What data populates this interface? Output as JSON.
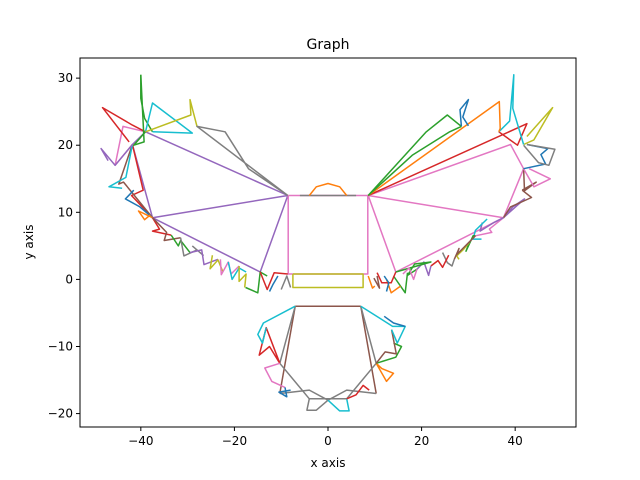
{
  "chart_data": {
    "type": "line",
    "title": "Graph",
    "xlabel": "x axis",
    "ylabel": "y axis",
    "xlim": [
      -53,
      53
    ],
    "ylim": [
      -22,
      33
    ],
    "xticks": [
      -40,
      -20,
      0,
      20,
      40
    ],
    "yticks": [
      -20,
      -10,
      0,
      10,
      20,
      30
    ],
    "grid": false,
    "legend": "none",
    "palette": [
      "#1f77b4",
      "#ff7f0e",
      "#2ca02c",
      "#d62728",
      "#9467bd",
      "#8c564b",
      "#e377c2",
      "#7f7f7f",
      "#bcbd22",
      "#17becf"
    ],
    "series": [
      {
        "color": "#9467bd",
        "x": [
          -8.6,
          -37.5,
          -14.5,
          -8.6
        ],
        "y": [
          12.5,
          9.2,
          1.1,
          12.5
        ]
      },
      {
        "color": "#9467bd",
        "x": [
          -8.6,
          -39,
          -41.8,
          -37.5
        ],
        "y": [
          12.5,
          22,
          20.1,
          9.2
        ]
      },
      {
        "color": "#e377c2",
        "x": [
          8.6,
          37.5,
          14.5,
          8.6
        ],
        "y": [
          12.5,
          9.2,
          1.1,
          12.5
        ]
      },
      {
        "color": "#e377c2",
        "x": [
          8.6,
          39,
          41.8,
          37.5
        ],
        "y": [
          12.5,
          20.1,
          16.5,
          9.2
        ]
      },
      {
        "color": "#e377c2",
        "x": [
          -8.5,
          8.5,
          8.5,
          -8.5,
          -8.5
        ],
        "y": [
          12.5,
          12.5,
          0.8,
          0.8,
          12.5
        ]
      },
      {
        "color": "#7f7f7f",
        "x": [
          -6,
          6
        ],
        "y": [
          12.5,
          12.5
        ]
      },
      {
        "color": "#bcbd22",
        "x": [
          -7.5,
          7.5,
          7.5,
          -7.5,
          -7.5
        ],
        "y": [
          0.8,
          0.8,
          -1.2,
          -1.2,
          0.8
        ]
      },
      {
        "color": "#ff7f0e",
        "x": [
          -4,
          -2.5,
          0,
          2.5,
          4
        ],
        "y": [
          12.5,
          13.8,
          14.3,
          13.8,
          12.5
        ]
      },
      {
        "color": "#8c564b",
        "x": [
          -7,
          7
        ],
        "y": [
          -4,
          -4
        ]
      },
      {
        "color": "#8c564b",
        "x": [
          -7,
          -10.3
        ],
        "y": [
          -4,
          -17
        ]
      },
      {
        "color": "#8c564b",
        "x": [
          7,
          10.3
        ],
        "y": [
          -4,
          -17
        ]
      },
      {
        "color": "#7f7f7f",
        "x": [
          -7,
          -10.3,
          -4,
          4,
          10.3,
          7
        ],
        "y": [
          -4,
          -12.5,
          -17.8,
          -17.8,
          -12.5,
          -4
        ]
      },
      {
        "color": "#7f7f7f",
        "x": [
          -10.3,
          -4,
          0,
          4,
          10.3
        ],
        "y": [
          -17,
          -16.5,
          -18,
          -16.5,
          -17
        ]
      },
      {
        "color": "#d62728",
        "x": [
          -10.3,
          -12.5,
          -14.7,
          -13.2,
          -10.3
        ],
        "y": [
          -12.5,
          -10,
          -11.3,
          -7.2,
          -12.5
        ]
      },
      {
        "color": "#17becf",
        "x": [
          -7,
          -13.8,
          -15,
          -14,
          -13.2
        ],
        "y": [
          -4,
          -6.5,
          -8.2,
          -9.5,
          -7.2
        ]
      },
      {
        "color": "#e377c2",
        "x": [
          -10.3,
          -13.5,
          -12,
          -9.2
        ],
        "y": [
          -12.5,
          -13.2,
          -15.2,
          -16.1
        ]
      },
      {
        "color": "#1f77b4",
        "x": [
          -9.2,
          -8.8,
          -10.5,
          -8
        ],
        "y": [
          -16.1,
          -17.5,
          -16.8,
          -16.5
        ]
      },
      {
        "color": "#7f7f7f",
        "x": [
          -4,
          -4.5,
          -2.5,
          0
        ],
        "y": [
          -17.8,
          -19.5,
          -19.5,
          -18
        ]
      },
      {
        "color": "#17becf",
        "x": [
          0,
          2.5,
          4.5,
          4
        ],
        "y": [
          -18,
          -19.6,
          -19.6,
          -17.8
        ]
      },
      {
        "color": "#d62728",
        "x": [
          4,
          6,
          7.5,
          8.8
        ],
        "y": [
          -17.8,
          -17.2,
          -15.8,
          -16.5
        ]
      },
      {
        "color": "#ff7f0e",
        "x": [
          10.3,
          12.5,
          14,
          11.5,
          10.3
        ],
        "y": [
          -12.5,
          -15.2,
          -14,
          -13.3,
          -12.5
        ]
      },
      {
        "color": "#2ca02c",
        "x": [
          10.3,
          14.5,
          15.7,
          14
        ],
        "y": [
          -12.5,
          -11.6,
          -10,
          -9.5
        ]
      },
      {
        "color": "#8c564b",
        "x": [
          10.3,
          12.2,
          14.6,
          13.6
        ],
        "y": [
          -12.5,
          -10.8,
          -11.1,
          -7.5
        ]
      },
      {
        "color": "#17becf",
        "x": [
          7,
          13.8,
          16.5,
          14.8,
          13.6
        ],
        "y": [
          -4,
          -7,
          -7,
          -9.5,
          -7.5
        ]
      },
      {
        "color": "#1f77b4",
        "x": [
          12,
          14,
          16.5
        ],
        "y": [
          -5.5,
          -6.5,
          -7
        ]
      },
      {
        "color": "#d62728",
        "x": [
          -37.5,
          -42,
          -39.5,
          -41.8
        ],
        "y": [
          9.2,
          12.5,
          13.3,
          20.1
        ]
      },
      {
        "color": "#8c564b",
        "x": [
          -37.5,
          -43.7,
          -44.7,
          -41.8
        ],
        "y": [
          9.2,
          14.5,
          14.2,
          20.1
        ]
      },
      {
        "color": "#1f77b4",
        "x": [
          -37.5,
          -40.2,
          -43.3,
          -41.5
        ],
        "y": [
          9.2,
          10.8,
          12,
          13.3
        ]
      },
      {
        "color": "#ff7f0e",
        "x": [
          -37.5,
          -40.5,
          -39.2,
          -38
        ],
        "y": [
          9.2,
          10.2,
          8.9,
          9.6
        ]
      },
      {
        "color": "#17becf",
        "x": [
          -41.8,
          -43.2,
          -46.8,
          -44
        ],
        "y": [
          20.1,
          15.2,
          13.8,
          13.6
        ]
      },
      {
        "color": "#e377c2",
        "x": [
          -39,
          -43.8,
          -45.5,
          -41.8
        ],
        "y": [
          22,
          22.8,
          17,
          20.1
        ]
      },
      {
        "color": "#9467bd",
        "x": [
          -41.8,
          -45.5,
          -48.5,
          -47
        ],
        "y": [
          20.1,
          17,
          19.5,
          17.7
        ]
      },
      {
        "color": "#d62728",
        "x": [
          -39,
          -41.8,
          -48.2,
          -42.5
        ],
        "y": [
          22,
          23,
          25.6,
          20.5
        ]
      },
      {
        "color": "#2ca02c",
        "x": [
          -39,
          -41.5,
          -39.3,
          -40
        ],
        "y": [
          22,
          20,
          20.5,
          30.5
        ]
      },
      {
        "color": "#2ca02c",
        "x": [
          -40,
          -40,
          -39.2,
          -37.5
        ],
        "y": [
          30.5,
          27,
          24,
          22
        ]
      },
      {
        "color": "#17becf",
        "x": [
          -39,
          -37.5,
          -29,
          -37.5
        ],
        "y": [
          22,
          26.3,
          21.8,
          22
        ]
      },
      {
        "color": "#bcbd22",
        "x": [
          -39,
          -29.3,
          -29.5,
          -28
        ],
        "y": [
          22,
          24.5,
          26.8,
          22.8
        ]
      },
      {
        "color": "#7f7f7f",
        "x": [
          -8.6,
          -28,
          -22,
          -17,
          -8.6
        ],
        "y": [
          12.5,
          22.8,
          22,
          16.5,
          12.5
        ]
      },
      {
        "color": "#d62728",
        "x": [
          -37.5,
          -36,
          -37.5,
          -33.5
        ],
        "y": [
          9.2,
          7.5,
          7.2,
          6.6
        ]
      },
      {
        "color": "#8c564b",
        "x": [
          -37.5,
          -34.5,
          -35,
          -31.5
        ],
        "y": [
          9.2,
          7,
          5.8,
          6.2
        ]
      },
      {
        "color": "#2ca02c",
        "x": [
          -33.5,
          -32,
          -31.5,
          -29.5
        ],
        "y": [
          6.6,
          5,
          5.8,
          4
        ]
      },
      {
        "color": "#7f7f7f",
        "x": [
          -31.5,
          -30.8,
          -28,
          -26.7,
          -29
        ],
        "y": [
          6.2,
          3.5,
          4.4,
          3.6,
          5
        ]
      },
      {
        "color": "#9467bd",
        "x": [
          -29.5,
          -27,
          -26.5,
          -23.5
        ],
        "y": [
          4,
          4.4,
          2.2,
          3
        ]
      },
      {
        "color": "#bcbd22",
        "x": [
          -24.7,
          -25.2,
          -23.5,
          -22.5
        ],
        "y": [
          3.6,
          1.6,
          2.9,
          1.2
        ]
      },
      {
        "color": "#e377c2",
        "x": [
          -23,
          -22.8,
          -21.3,
          -20.7,
          -19
        ],
        "y": [
          3,
          0.7,
          2.6,
          0.8,
          2
        ]
      },
      {
        "color": "#17becf",
        "x": [
          -21.3,
          -20.5,
          -19,
          -17.5
        ],
        "y": [
          2.6,
          0,
          1.7,
          1.1
        ]
      },
      {
        "color": "#bcbd22",
        "x": [
          -19,
          -19,
          -17.5,
          -17.8
        ],
        "y": [
          2,
          -0.3,
          0.8,
          -1.2
        ]
      },
      {
        "color": "#2ca02c",
        "x": [
          -17.6,
          -15,
          -14.5,
          -13
        ],
        "y": [
          -1.2,
          -2,
          1.1,
          0.5
        ]
      },
      {
        "color": "#d62728",
        "x": [
          -14.5,
          -13,
          -11.5,
          -8.6
        ],
        "y": [
          1.1,
          -1.5,
          1,
          0.8
        ]
      },
      {
        "color": "#1f77b4",
        "x": [
          -12.5,
          -11.8,
          -10.7
        ],
        "y": [
          -1.8,
          -0.8,
          0.5
        ]
      },
      {
        "color": "#7f7f7f",
        "x": [
          -10,
          -8.8,
          -8
        ],
        "y": [
          -1.5,
          0.5,
          -1.2
        ]
      },
      {
        "color": "#9467bd",
        "x": [
          37.5,
          39.5,
          42,
          37.5
        ],
        "y": [
          9.2,
          10.8,
          12,
          9.2
        ]
      },
      {
        "color": "#8c564b",
        "x": [
          37.5,
          39,
          43.5,
          41.5
        ],
        "y": [
          9.2,
          10.8,
          12.2,
          13.3
        ]
      },
      {
        "color": "#8c564b",
        "x": [
          41.5,
          44.5,
          42,
          41.8
        ],
        "y": [
          13.3,
          14.5,
          13.2,
          16.5
        ]
      },
      {
        "color": "#e377c2",
        "x": [
          41.8,
          44,
          47.5,
          43
        ],
        "y": [
          16.5,
          13.8,
          15,
          16.5
        ]
      },
      {
        "color": "#1f77b4",
        "x": [
          41.8,
          46.5,
          45.5,
          47,
          42.5
        ],
        "y": [
          16.5,
          17.2,
          18.6,
          19.5,
          20.1
        ]
      },
      {
        "color": "#7f7f7f",
        "x": [
          42.5,
          48.5,
          47.2,
          45,
          41.8
        ],
        "y": [
          20.1,
          19.4,
          17,
          17.4,
          20
        ]
      },
      {
        "color": "#bcbd22",
        "x": [
          41.8,
          44,
          48,
          42.5
        ],
        "y": [
          20.1,
          20.8,
          25.6,
          21.3
        ]
      },
      {
        "color": "#d62728",
        "x": [
          8.6,
          42.5,
          40.5,
          36.5
        ],
        "y": [
          12.5,
          23.2,
          20,
          22
        ]
      },
      {
        "color": "#17becf",
        "x": [
          36.5,
          38.8,
          39.7,
          39.5,
          41.8
        ],
        "y": [
          22,
          23.6,
          30.5,
          25.5,
          20.1
        ]
      },
      {
        "color": "#ff7f0e",
        "x": [
          8.6,
          36.6,
          36.8,
          36.5
        ],
        "y": [
          12.5,
          26.5,
          22.5,
          22
        ]
      },
      {
        "color": "#2ca02c",
        "x": [
          8.6,
          21,
          25.5,
          28.5
        ],
        "y": [
          12.5,
          22,
          24.5,
          22.8
        ]
      },
      {
        "color": "#1f77b4",
        "x": [
          28.5,
          28.2,
          30,
          28.8,
          30
        ],
        "y": [
          22.8,
          25.3,
          26.8,
          24.2,
          22.9
        ]
      },
      {
        "color": "#2ca02c",
        "x": [
          8.6,
          18,
          26,
          28.5
        ],
        "y": [
          12.5,
          18.5,
          22,
          22.8
        ]
      },
      {
        "color": "#e377c2",
        "x": [
          37.5,
          34.5,
          35,
          31.5
        ],
        "y": [
          9.2,
          7.5,
          7,
          6.5
        ]
      },
      {
        "color": "#9467bd",
        "x": [
          37.5,
          35.5,
          32.5,
          33
        ],
        "y": [
          9.2,
          8.5,
          7.2,
          8.5
        ]
      },
      {
        "color": "#17becf",
        "x": [
          34,
          31.5,
          31,
          32.8
        ],
        "y": [
          9,
          7.3,
          6,
          6
        ]
      },
      {
        "color": "#2ca02c",
        "x": [
          31.5,
          31,
          29.5,
          30.2
        ],
        "y": [
          6.5,
          6.5,
          4.2,
          5.5
        ]
      },
      {
        "color": "#bcbd22",
        "x": [
          30.2,
          29,
          27.5,
          28
        ],
        "y": [
          5.5,
          4.5,
          3.5,
          3
        ]
      },
      {
        "color": "#8c564b",
        "x": [
          31.5,
          27.5,
          28,
          27
        ],
        "y": [
          6.5,
          3.7,
          4.6,
          3
        ]
      },
      {
        "color": "#7f7f7f",
        "x": [
          27,
          26.5,
          25.5,
          24.5
        ],
        "y": [
          3,
          2,
          2.5,
          4
        ]
      },
      {
        "color": "#d62728",
        "x": [
          25.8,
          24.5,
          23.5,
          22
        ],
        "y": [
          3.6,
          1.8,
          2.8,
          2
        ]
      },
      {
        "color": "#9467bd",
        "x": [
          22,
          21.5,
          20.5,
          19
        ],
        "y": [
          2,
          0.6,
          2.6,
          1.5
        ]
      },
      {
        "color": "#2ca02c",
        "x": [
          19,
          17,
          18.5,
          22,
          14.5
        ],
        "y": [
          1.5,
          0.6,
          2.3,
          2.6,
          1.1
        ]
      },
      {
        "color": "#e377c2",
        "x": [
          19,
          18.3,
          17.3,
          16
        ],
        "y": [
          1.5,
          0,
          1.7,
          0.8
        ]
      },
      {
        "color": "#2ca02c",
        "x": [
          17,
          16.5,
          15.5,
          14
        ],
        "y": [
          1,
          -2,
          -1,
          0.5
        ]
      },
      {
        "color": "#ff7f0e",
        "x": [
          15.5,
          13.5,
          12.5
        ],
        "y": [
          -1,
          -2,
          0
        ]
      },
      {
        "color": "#d62728",
        "x": [
          14.5,
          13.5,
          11.5,
          10.5
        ],
        "y": [
          1.1,
          -0.5,
          -0.5,
          1
        ]
      },
      {
        "color": "#8c564b",
        "x": [
          10.5,
          11,
          9.8
        ],
        "y": [
          0.5,
          -1.3,
          0.2
        ]
      },
      {
        "color": "#ff7f0e",
        "x": [
          8.6,
          9.5,
          10
        ],
        "y": [
          0.5,
          -1.3,
          -1
        ]
      },
      {
        "color": "#1f77b4",
        "x": [
          12.5,
          13,
          12
        ],
        "y": [
          -1.8,
          -0.5,
          0.5
        ]
      }
    ]
  }
}
